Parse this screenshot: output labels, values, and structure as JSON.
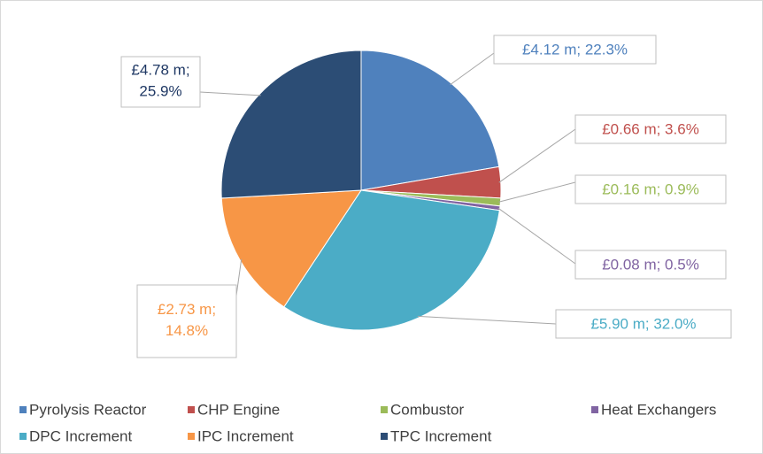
{
  "chart_data": {
    "type": "pie",
    "categories": [
      "Pyrolysis Reactor",
      "CHP Engine",
      "Combustor",
      "Heat Exchangers",
      "DPC Increment",
      "IPC Increment",
      "TPC Increment"
    ],
    "values": [
      22.3,
      3.6,
      0.9,
      0.5,
      32.0,
      14.8,
      25.9
    ],
    "value_labels": [
      "£4.12 m; 22.3%",
      "£0.66 m; 3.6%",
      "£0.16 m; 0.9%",
      "£0.08 m; 0.5%",
      "£5.90 m; 32.0%",
      "£2.73 m; 14.8%",
      "£4.78 m; 25.9%"
    ],
    "colors": [
      "#4f81bd",
      "#c0504d",
      "#9bbb59",
      "#8064a2",
      "#4bacc6",
      "#f79646",
      "#2c4d75"
    ],
    "legend": "bottom"
  }
}
